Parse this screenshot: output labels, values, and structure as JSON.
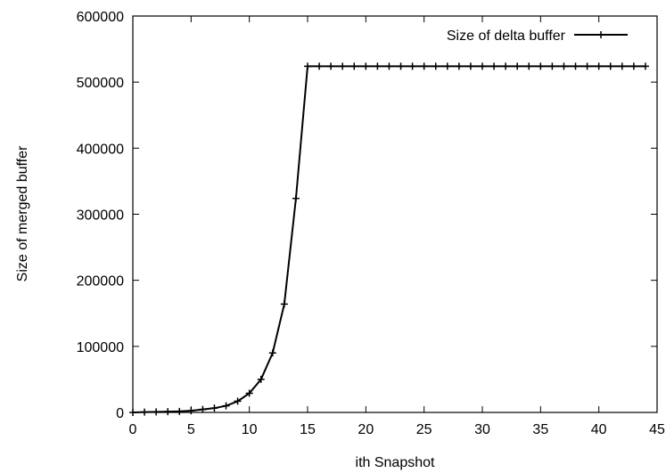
{
  "chart_data": {
    "type": "line",
    "title": "",
    "xlabel": "ith Snapshot",
    "ylabel": "Size of merged buffer",
    "xlim": [
      0,
      45
    ],
    "ylim": [
      0,
      600000
    ],
    "xticks": [
      0,
      5,
      10,
      15,
      20,
      25,
      30,
      35,
      40,
      45
    ],
    "yticks": [
      0,
      100000,
      200000,
      300000,
      400000,
      500000,
      600000
    ],
    "xtick_labels": [
      "0",
      "5",
      "10",
      "15",
      "20",
      "25",
      "30",
      "35",
      "40",
      "45"
    ],
    "ytick_labels": [
      "0",
      "100000",
      "200000",
      "300000",
      "400000",
      "500000",
      "600000"
    ],
    "grid": false,
    "legend_position": "top-right",
    "series": [
      {
        "name": "Size of delta buffer",
        "color": "#000000",
        "marker": "plus",
        "x": [
          0,
          1,
          2,
          3,
          4,
          5,
          6,
          7,
          8,
          9,
          10,
          11,
          12,
          13,
          14,
          15,
          16,
          17,
          18,
          19,
          20,
          21,
          22,
          23,
          24,
          25,
          26,
          27,
          28,
          29,
          30,
          31,
          32,
          33,
          34,
          35,
          36,
          37,
          38,
          39,
          40,
          41,
          42,
          43,
          44
        ],
        "y": [
          0,
          500,
          800,
          1200,
          1600,
          2500,
          4500,
          6500,
          10000,
          17000,
          29000,
          50000,
          90000,
          164000,
          324000,
          524000,
          524000,
          524000,
          524000,
          524000,
          524000,
          524000,
          524000,
          524000,
          524000,
          524000,
          524000,
          524000,
          524000,
          524000,
          524000,
          524000,
          524000,
          524000,
          524000,
          524000,
          524000,
          524000,
          524000,
          524000,
          524000,
          524000,
          524000,
          524000,
          524000
        ]
      }
    ]
  }
}
